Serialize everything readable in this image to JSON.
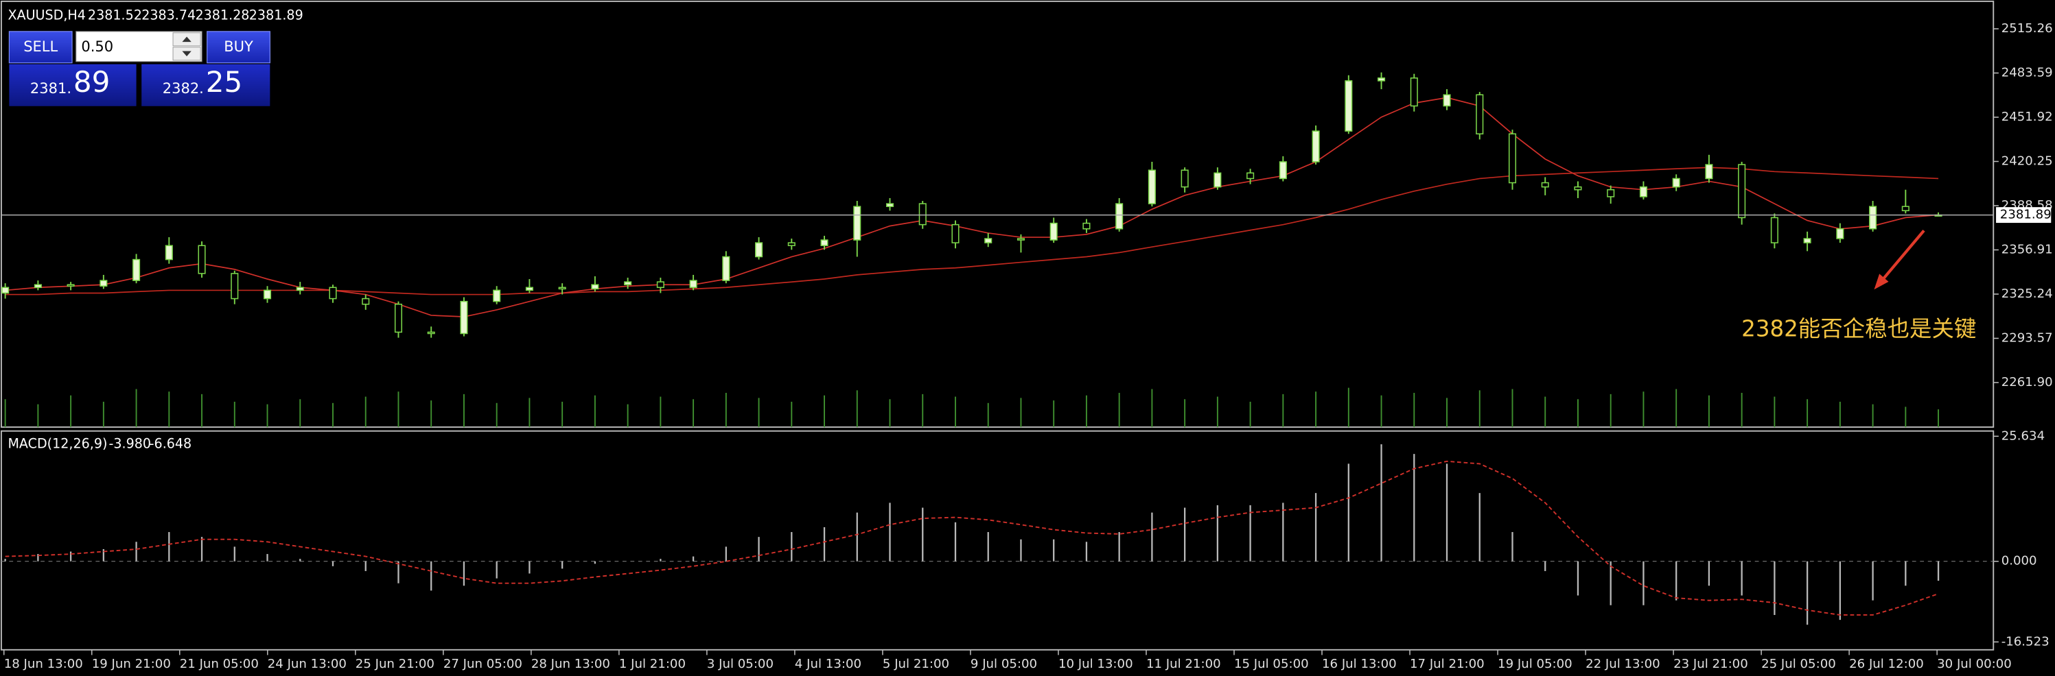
{
  "trade_panel": {
    "sell": "SELL",
    "buy": "BUY",
    "lot": "0.50",
    "sell_head": "2381.",
    "sell_tail": "89",
    "buy_head": "2382.",
    "buy_tail": "25"
  },
  "chart_data": [
    {
      "type": "candlestick",
      "symbol": "XAUUSD,H4",
      "ohlc": [
        [
          2326,
          2333,
          2322,
          2330
        ],
        [
          2330,
          2335,
          2328,
          2332
        ],
        [
          2332,
          2334,
          2328,
          2331
        ],
        [
          2331,
          2339,
          2329,
          2335
        ],
        [
          2335,
          2354,
          2333,
          2350
        ],
        [
          2350,
          2366,
          2347,
          2360
        ],
        [
          2360,
          2363,
          2337,
          2340
        ],
        [
          2340,
          2342,
          2318,
          2322
        ],
        [
          2322,
          2331,
          2319,
          2328
        ],
        [
          2328,
          2334,
          2325,
          2330
        ],
        [
          2330,
          2332,
          2319,
          2322
        ],
        [
          2322,
          2325,
          2314,
          2318
        ],
        [
          2318,
          2320,
          2294,
          2298
        ],
        [
          2298,
          2302,
          2294,
          2297
        ],
        [
          2297,
          2323,
          2295,
          2320
        ],
        [
          2320,
          2331,
          2318,
          2328
        ],
        [
          2328,
          2336,
          2326,
          2330
        ],
        [
          2330,
          2333,
          2325,
          2329
        ],
        [
          2329,
          2338,
          2327,
          2332
        ],
        [
          2332,
          2337,
          2329,
          2334
        ],
        [
          2334,
          2337,
          2326,
          2330
        ],
        [
          2330,
          2339,
          2328,
          2335
        ],
        [
          2335,
          2356,
          2333,
          2352
        ],
        [
          2352,
          2366,
          2350,
          2362
        ],
        [
          2362,
          2365,
          2357,
          2360
        ],
        [
          2360,
          2367,
          2357,
          2364
        ],
        [
          2364,
          2392,
          2352,
          2388
        ],
        [
          2388,
          2394,
          2385,
          2390
        ],
        [
          2390,
          2392,
          2372,
          2375
        ],
        [
          2375,
          2378,
          2358,
          2362
        ],
        [
          2362,
          2369,
          2359,
          2365
        ],
        [
          2365,
          2368,
          2355,
          2364
        ],
        [
          2364,
          2380,
          2362,
          2376
        ],
        [
          2376,
          2379,
          2369,
          2372
        ],
        [
          2372,
          2394,
          2370,
          2390
        ],
        [
          2390,
          2420,
          2388,
          2414
        ],
        [
          2414,
          2416,
          2398,
          2402
        ],
        [
          2402,
          2416,
          2400,
          2412
        ],
        [
          2412,
          2415,
          2404,
          2408
        ],
        [
          2408,
          2424,
          2406,
          2420
        ],
        [
          2420,
          2446,
          2418,
          2442
        ],
        [
          2442,
          2482,
          2440,
          2478
        ],
        [
          2478,
          2484,
          2472,
          2480
        ],
        [
          2480,
          2483,
          2456,
          2460
        ],
        [
          2460,
          2472,
          2457,
          2468
        ],
        [
          2468,
          2470,
          2436,
          2440
        ],
        [
          2440,
          2443,
          2400,
          2405
        ],
        [
          2405,
          2409,
          2396,
          2402
        ],
        [
          2402,
          2406,
          2394,
          2400
        ],
        [
          2400,
          2403,
          2390,
          2395
        ],
        [
          2395,
          2406,
          2393,
          2402
        ],
        [
          2402,
          2411,
          2399,
          2408
        ],
        [
          2408,
          2425,
          2405,
          2418
        ],
        [
          2418,
          2420,
          2375,
          2380
        ],
        [
          2380,
          2383,
          2358,
          2362
        ],
        [
          2362,
          2370,
          2356,
          2365
        ],
        [
          2365,
          2376,
          2362,
          2372
        ],
        [
          2372,
          2392,
          2370,
          2388
        ],
        [
          2388,
          2400,
          2383,
          2385
        ],
        [
          2381.52,
          2383.74,
          2381.28,
          2381.89
        ]
      ],
      "up_color": "#e8f8d0",
      "down_color": "#000000",
      "outline_color": "#7cd64a",
      "moving_averages": [
        {
          "color": "#c0281e",
          "values": [
            2325,
            2325,
            2326,
            2326,
            2327,
            2328,
            2328,
            2328,
            2328,
            2328,
            2328,
            2327,
            2326,
            2325,
            2325,
            2325,
            2326,
            2326,
            2327,
            2327,
            2328,
            2329,
            2330,
            2332,
            2334,
            2336,
            2339,
            2341,
            2343,
            2344,
            2346,
            2348,
            2350,
            2352,
            2355,
            2359,
            2363,
            2367,
            2371,
            2375,
            2380,
            2386,
            2393,
            2399,
            2404,
            2408,
            2410,
            2411,
            2412,
            2413,
            2414,
            2415,
            2416,
            2415,
            2413,
            2412,
            2411,
            2410,
            2409,
            2408
          ]
        },
        {
          "color": "#d0302a",
          "values": [
            2328,
            2330,
            2331,
            2332,
            2337,
            2344,
            2347,
            2343,
            2336,
            2330,
            2328,
            2325,
            2318,
            2310,
            2309,
            2314,
            2320,
            2326,
            2329,
            2331,
            2332,
            2332,
            2336,
            2344,
            2352,
            2358,
            2366,
            2374,
            2378,
            2374,
            2369,
            2366,
            2366,
            2368,
            2374,
            2386,
            2396,
            2402,
            2406,
            2410,
            2420,
            2436,
            2452,
            2462,
            2466,
            2460,
            2440,
            2422,
            2410,
            2402,
            2400,
            2402,
            2406,
            2402,
            2390,
            2378,
            2372,
            2374,
            2380,
            2382
          ]
        }
      ],
      "volume": {
        "color": "#3f8f2f",
        "values": [
          22,
          18,
          25,
          20,
          30,
          28,
          26,
          20,
          18,
          22,
          19,
          24,
          28,
          21,
          26,
          19,
          23,
          20,
          25,
          18,
          24,
          22,
          27,
          23,
          20,
          25,
          29,
          22,
          26,
          24,
          19,
          23,
          21,
          25,
          27,
          30,
          22,
          24,
          20,
          26,
          28,
          31,
          25,
          27,
          23,
          29,
          30,
          24,
          22,
          26,
          28,
          30,
          25,
          27,
          24,
          22,
          20,
          18,
          16,
          14
        ]
      },
      "ylim": [
        2230,
        2534
      ],
      "yticks": [
        {
          "value": 2261.9,
          "label": "2261.90"
        },
        2293.57,
        2325.24,
        2356.91,
        2388.58,
        2420.25,
        2451.92,
        2483.59,
        2515.26
      ],
      "xticks": [
        "18 Jun 13:00",
        "19 Jun 21:00",
        "21 Jun 05:00",
        "24 Jun 13:00",
        "25 Jun 21:00",
        "27 Jun 05:00",
        "28 Jun 13:00",
        "1 Jul 21:00",
        "3 Jul 05:00",
        "4 Jul 13:00",
        "5 Jul 21:00",
        "9 Jul 05:00",
        "10 Jul 13:00",
        "11 Jul 21:00",
        "15 Jul 05:00",
        "16 Jul 13:00",
        "17 Jul 21:00",
        "19 Jul 05:00",
        "22 Jul 13:00",
        "23 Jul 21:00",
        "25 Jul 05:00",
        "26 Jul 12:00",
        "30 Jul 00:00"
      ],
      "annotation": "2382能否企稳也是关键",
      "annotation_color": "#f5c542"
    },
    {
      "type": "macd",
      "title": "MACD(12,26,9)",
      "histogram": {
        "color": "#b8b8b8",
        "values": [
          0.5,
          1.5,
          2,
          2.5,
          4,
          6,
          5,
          3,
          1.5,
          0.5,
          -1,
          -2,
          -4.5,
          -6,
          -5,
          -3.5,
          -2.5,
          -1.5,
          -0.5,
          0,
          0.5,
          1,
          3,
          5,
          6,
          7,
          10,
          12,
          11,
          8,
          6,
          4.5,
          4.5,
          4,
          6,
          10,
          11,
          11.5,
          11.5,
          12,
          14,
          20,
          24,
          22,
          20,
          14,
          6,
          -2,
          -7,
          -9,
          -9,
          -8,
          -5,
          -7,
          -11,
          -13,
          -12,
          -8,
          -5,
          -3.98
        ]
      },
      "signal": {
        "color": "#d0302a",
        "values": [
          1,
          1.2,
          1.5,
          2,
          2.5,
          3.5,
          4.5,
          4.5,
          4,
          3,
          2,
          1,
          -0.5,
          -2,
          -3.5,
          -4.5,
          -4.5,
          -4,
          -3.2,
          -2.5,
          -1.8,
          -1,
          0,
          1.2,
          2.5,
          4,
          5.5,
          7.5,
          8.8,
          9,
          8.5,
          7.5,
          6.5,
          5.8,
          5.6,
          6.5,
          7.8,
          9,
          10,
          10.5,
          11,
          13,
          16,
          19,
          20.5,
          20,
          17,
          12,
          5,
          -1,
          -5,
          -7.5,
          -8,
          -7.8,
          -8.5,
          -10,
          -11,
          -11,
          -9,
          -6.648
        ]
      },
      "current_labels": [
        "-3.980",
        "-6.648"
      ],
      "ylim": [
        -16.523,
        25.634
      ],
      "yticks": [
        -16.523,
        {
          "value": 0,
          "label": "0.000"
        },
        25.634
      ]
    }
  ]
}
